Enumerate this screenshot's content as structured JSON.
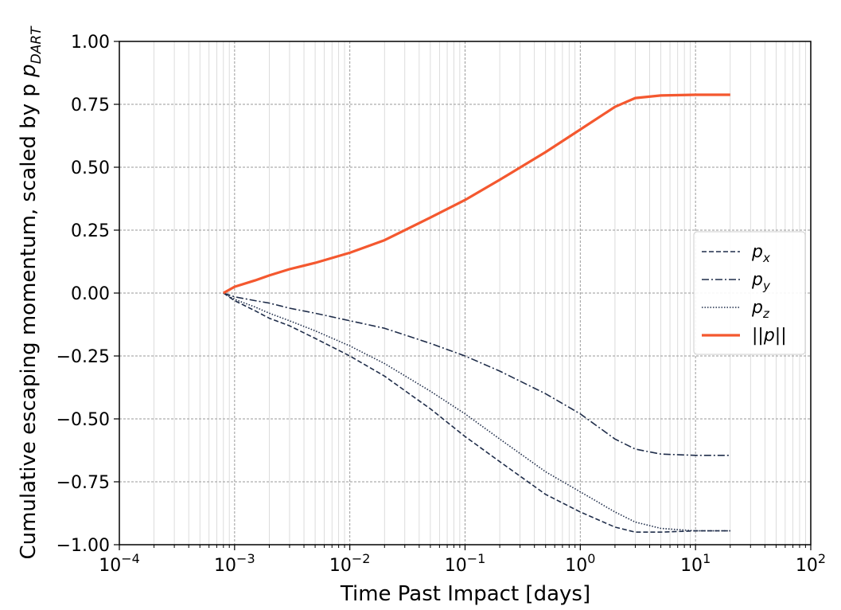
{
  "chart_data": {
    "type": "line",
    "xlabel": "Time Past Impact [days]",
    "ylabel": "Cumulative escaping momentum, scaled by p",
    "ylabel_sub": "DART",
    "xscale": "log",
    "xlim": [
      0.0001,
      100
    ],
    "ylim": [
      -1.0,
      1.0
    ],
    "grid": true,
    "x_ticks": [
      {
        "value": 0.0001,
        "base": "10",
        "exp": "−4"
      },
      {
        "value": 0.001,
        "base": "10",
        "exp": "−3"
      },
      {
        "value": 0.01,
        "base": "10",
        "exp": "−2"
      },
      {
        "value": 0.1,
        "base": "10",
        "exp": "−1"
      },
      {
        "value": 1,
        "base": "10",
        "exp": "0"
      },
      {
        "value": 10,
        "base": "10",
        "exp": "1"
      },
      {
        "value": 100,
        "base": "10",
        "exp": "2"
      }
    ],
    "y_ticks": [
      {
        "value": 1.0,
        "label": "1.00"
      },
      {
        "value": 0.75,
        "label": "0.75"
      },
      {
        "value": 0.5,
        "label": "0.50"
      },
      {
        "value": 0.25,
        "label": "0.25"
      },
      {
        "value": 0.0,
        "label": "0.00"
      },
      {
        "value": -0.25,
        "label": "−0.25"
      },
      {
        "value": -0.5,
        "label": "−0.50"
      },
      {
        "value": -0.75,
        "label": "−0.75"
      },
      {
        "value": -1.0,
        "label": "−1.00"
      }
    ],
    "legend_position": "center-right",
    "series": [
      {
        "name": "p",
        "name_sub": "x",
        "color": "#1f2d4a",
        "style": "dashed",
        "x": [
          0.0008,
          0.001,
          0.0015,
          0.002,
          0.003,
          0.005,
          0.01,
          0.02,
          0.05,
          0.1,
          0.2,
          0.5,
          1,
          2,
          3,
          5,
          10,
          20
        ],
        "y": [
          0,
          -0.03,
          -0.07,
          -0.1,
          -0.13,
          -0.18,
          -0.25,
          -0.33,
          -0.46,
          -0.57,
          -0.67,
          -0.8,
          -0.87,
          -0.93,
          -0.95,
          -0.95,
          -0.945,
          -0.945
        ]
      },
      {
        "name": "p",
        "name_sub": "y",
        "color": "#1f2d4a",
        "style": "dashdot",
        "x": [
          0.0008,
          0.001,
          0.0015,
          0.002,
          0.003,
          0.005,
          0.01,
          0.02,
          0.05,
          0.1,
          0.2,
          0.5,
          1,
          2,
          3,
          5,
          10,
          20
        ],
        "y": [
          0,
          -0.015,
          -0.03,
          -0.04,
          -0.06,
          -0.08,
          -0.11,
          -0.14,
          -0.2,
          -0.25,
          -0.31,
          -0.4,
          -0.48,
          -0.58,
          -0.62,
          -0.64,
          -0.645,
          -0.645
        ]
      },
      {
        "name": "p",
        "name_sub": "z",
        "color": "#1f2d4a",
        "style": "dotted",
        "x": [
          0.0008,
          0.001,
          0.0015,
          0.002,
          0.003,
          0.005,
          0.01,
          0.02,
          0.05,
          0.1,
          0.2,
          0.5,
          1,
          2,
          3,
          5,
          10,
          20
        ],
        "y": [
          0,
          -0.025,
          -0.055,
          -0.08,
          -0.11,
          -0.15,
          -0.21,
          -0.28,
          -0.39,
          -0.48,
          -0.58,
          -0.71,
          -0.79,
          -0.87,
          -0.91,
          -0.935,
          -0.945,
          -0.945
        ]
      },
      {
        "name": "||p||",
        "name_sub": "",
        "color": "#f4582f",
        "style": "solid",
        "x": [
          0.0008,
          0.001,
          0.0015,
          0.002,
          0.003,
          0.005,
          0.01,
          0.02,
          0.05,
          0.1,
          0.2,
          0.5,
          1,
          2,
          3,
          5,
          10,
          20
        ],
        "y": [
          0,
          0.025,
          0.05,
          0.07,
          0.095,
          0.12,
          0.16,
          0.21,
          0.3,
          0.37,
          0.45,
          0.56,
          0.65,
          0.74,
          0.775,
          0.785,
          0.788,
          0.788
        ]
      }
    ]
  }
}
